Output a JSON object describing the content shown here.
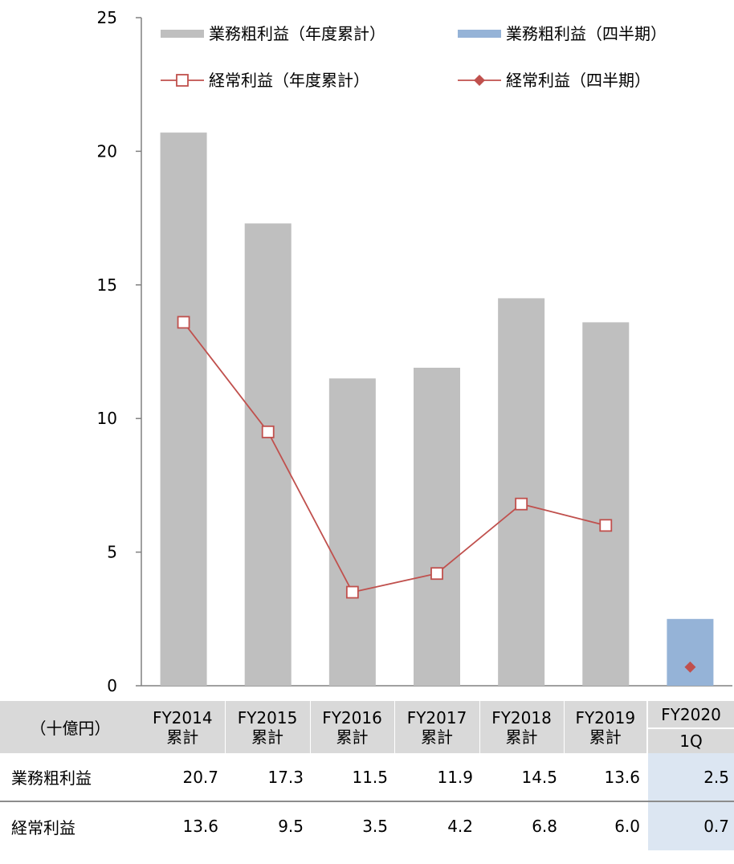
{
  "chart_data": {
    "type": "bar",
    "categories": [
      "FY2014",
      "FY2015",
      "FY2016",
      "FY2017",
      "FY2018",
      "FY2019",
      "FY2020"
    ],
    "category_sublabels": [
      "累計",
      "累計",
      "累計",
      "累計",
      "累計",
      "累計",
      "1Q"
    ],
    "unit_label": "（十億円）",
    "ylim": [
      0,
      25
    ],
    "yticks": [
      "0",
      "5",
      "10",
      "15",
      "20",
      "25"
    ],
    "grid": false,
    "legend_position": "top",
    "colors": {
      "annual_bar": "#bfbfbf",
      "quarter_bar": "#95b3d7",
      "line": "#c0504d"
    },
    "series": [
      {
        "name": "業務粗利益（年度累計）",
        "kind": "bar",
        "values": [
          20.7,
          17.3,
          11.5,
          11.9,
          14.5,
          13.6,
          null
        ]
      },
      {
        "name": "業務粗利益（四半期）",
        "kind": "bar",
        "values": [
          null,
          null,
          null,
          null,
          null,
          null,
          2.5
        ]
      },
      {
        "name": "経常利益（年度累計）",
        "kind": "line-square",
        "values": [
          13.6,
          9.5,
          3.5,
          4.2,
          6.8,
          6.0,
          null
        ]
      },
      {
        "name": "経常利益（四半期）",
        "kind": "line-diamond",
        "values": [
          null,
          null,
          null,
          null,
          null,
          null,
          0.7
        ]
      }
    ]
  },
  "table": {
    "unit_label": "（十億円）",
    "headers": [
      {
        "top": "FY2014",
        "bottom": "累計"
      },
      {
        "top": "FY2015",
        "bottom": "累計"
      },
      {
        "top": "FY2016",
        "bottom": "累計"
      },
      {
        "top": "FY2017",
        "bottom": "累計"
      },
      {
        "top": "FY2018",
        "bottom": "累計"
      },
      {
        "top": "FY2019",
        "bottom": "累計"
      },
      {
        "top": "FY2020",
        "bottom": "1Q"
      }
    ],
    "rows": [
      {
        "label": "業務粗利益",
        "values": [
          "20.7",
          "17.3",
          "11.5",
          "11.9",
          "14.5",
          "13.6",
          "2.5"
        ]
      },
      {
        "label": "経常利益",
        "values": [
          "13.6",
          "9.5",
          "3.5",
          "4.2",
          "6.8",
          "6.0",
          "0.7"
        ]
      }
    ]
  }
}
